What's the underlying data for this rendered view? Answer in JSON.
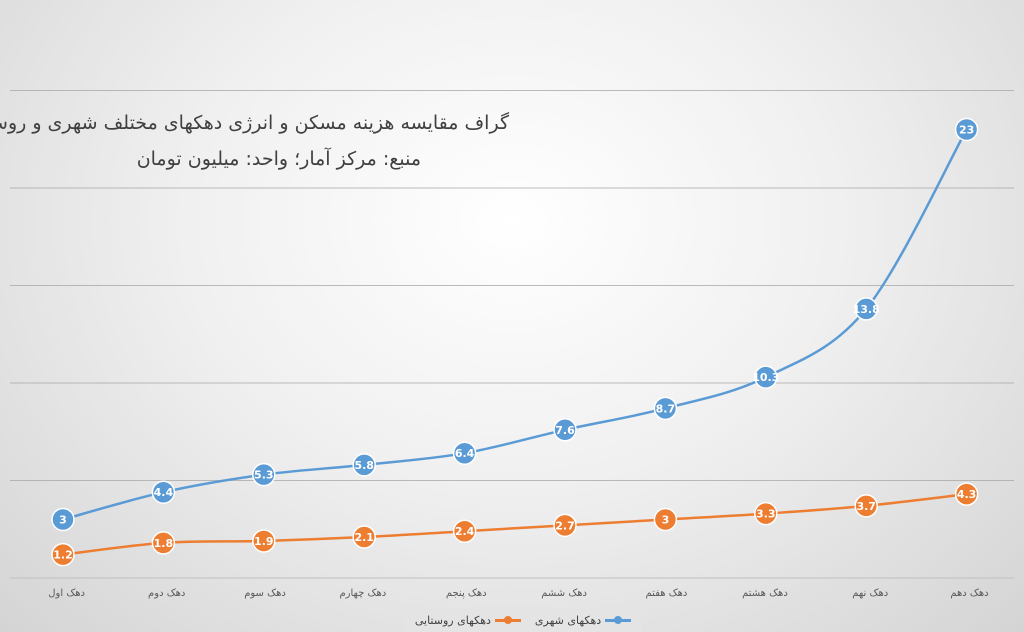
{
  "chart_data": {
    "type": "line",
    "title": "گراف مقایسه هزینه مسکن و انرژی دهکهای مختلف شهری و روستایی",
    "subtitle": "منبع: مرکز آمار؛ واحد: میلیون تومان",
    "categories": [
      "دهک اول",
      "دهک دوم",
      "دهک سوم",
      "دهک چهارم",
      "دهک پنجم",
      "دهک ششم",
      "دهک هفتم",
      "دهک هشتم",
      "دهک نهم",
      "دهک دهم"
    ],
    "series": [
      {
        "name": "دهکهای شهری",
        "color": "#5b9bd5",
        "values": [
          3,
          4.4,
          5.3,
          5.8,
          6.4,
          7.6,
          8.7,
          10.3,
          13.8,
          23
        ]
      },
      {
        "name": "دهکهای روستایی",
        "color": "#ed7d31",
        "values": [
          1.2,
          1.8,
          1.9,
          2.1,
          2.4,
          2.7,
          3,
          3.3,
          3.7,
          4.3
        ]
      }
    ],
    "ylim": [
      0,
      30
    ],
    "grid": true,
    "legend": "bottom",
    "xlabel": "",
    "ylabel": ""
  }
}
